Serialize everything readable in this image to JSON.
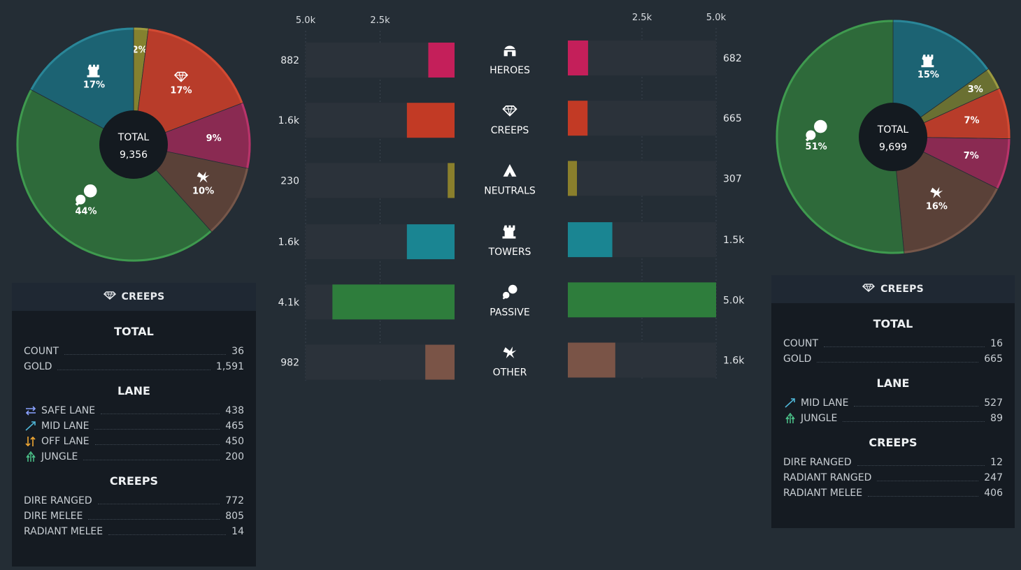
{
  "chart_data": [
    {
      "type": "pie",
      "total_label": "TOTAL",
      "total_value": "9,356",
      "slices": [
        {
          "name": "heroes",
          "label": "2%",
          "value": 2,
          "color": "#84812f",
          "icon": "none"
        },
        {
          "name": "creeps",
          "label": "17%",
          "value": 17,
          "color": "#b83c2a",
          "icon": "gem-icon"
        },
        {
          "name": "neutrals",
          "label": "9%",
          "value": 9,
          "color": "#8a2a52",
          "icon": "none"
        },
        {
          "name": "other",
          "label": "10%",
          "value": 10,
          "color": "#5a4138",
          "icon": "claw-icon"
        },
        {
          "name": "passive",
          "label": "44%",
          "value": 44,
          "color": "#2e6a3a",
          "icon": "passive-icon"
        },
        {
          "name": "towers",
          "label": "17%",
          "value": 17,
          "color": "#1c6373",
          "icon": "tower-icon"
        }
      ]
    },
    {
      "type": "bar",
      "orientation": "horizontal-mirrored",
      "axis_ticks_left": [
        "5.0k",
        "2.5k"
      ],
      "axis_ticks_right": [
        "2.5k",
        "5.0k"
      ],
      "xlim": [
        0,
        5000
      ],
      "categories": [
        "HEROES",
        "CREEPS",
        "NEUTRALS",
        "TOWERS",
        "PASSIVE",
        "OTHER"
      ],
      "icons": [
        "helmet-icon",
        "gem-icon",
        "neutrals-icon",
        "tower-icon",
        "passive-icon",
        "claw-icon"
      ],
      "colors": [
        "#c41f5a",
        "#c23a25",
        "#8a7f2c",
        "#1a8592",
        "#2e7d3c",
        "#7a5447"
      ],
      "series": [
        {
          "side": "left",
          "values": [
            882,
            1600,
            230,
            1600,
            4100,
            982
          ],
          "labels": [
            "882",
            "1.6k",
            "230",
            "1.6k",
            "4.1k",
            "982"
          ]
        },
        {
          "side": "right",
          "values": [
            682,
            665,
            307,
            1500,
            5000,
            1600
          ],
          "labels": [
            "682",
            "665",
            "307",
            "1.5k",
            "5.0k",
            "1.6k"
          ]
        }
      ]
    },
    {
      "type": "pie",
      "total_label": "TOTAL",
      "total_value": "9,699",
      "slices": [
        {
          "name": "towers",
          "label": "15%",
          "value": 15,
          "color": "#1c6373",
          "icon": "tower-icon"
        },
        {
          "name": "heroes",
          "label": "3%",
          "value": 3,
          "color": "#6a7032",
          "icon": "none"
        },
        {
          "name": "creeps",
          "label": "7%",
          "value": 7,
          "color": "#b83c2a",
          "icon": "none"
        },
        {
          "name": "neutrals",
          "label": "7%",
          "value": 7,
          "color": "#8a2a52",
          "icon": "none"
        },
        {
          "name": "other",
          "label": "16%",
          "value": 16,
          "color": "#5a4138",
          "icon": "claw-icon"
        },
        {
          "name": "passive",
          "label": "51%",
          "value": 51,
          "color": "#2e6a3a",
          "icon": "passive-icon"
        }
      ]
    }
  ],
  "left_panel": {
    "title": "CREEPS",
    "sections": [
      {
        "title": "TOTAL",
        "rows": [
          {
            "label": "COUNT",
            "value": "36",
            "icon": "none"
          },
          {
            "label": "GOLD",
            "value": "1,591",
            "icon": "none"
          }
        ]
      },
      {
        "title": "LANE",
        "rows": [
          {
            "label": "SAFE LANE",
            "value": "438",
            "icon": "safe-lane-icon"
          },
          {
            "label": "MID LANE",
            "value": "465",
            "icon": "mid-lane-icon"
          },
          {
            "label": "OFF LANE",
            "value": "450",
            "icon": "off-lane-icon"
          },
          {
            "label": "JUNGLE",
            "value": "200",
            "icon": "jungle-icon"
          }
        ]
      },
      {
        "title": "CREEPS",
        "rows": [
          {
            "label": "DIRE RANGED",
            "value": "772",
            "icon": "none"
          },
          {
            "label": "DIRE MELEE",
            "value": "805",
            "icon": "none"
          },
          {
            "label": "RADIANT MELEE",
            "value": "14",
            "icon": "none"
          }
        ]
      }
    ]
  },
  "right_panel": {
    "title": "CREEPS",
    "sections": [
      {
        "title": "TOTAL",
        "rows": [
          {
            "label": "COUNT",
            "value": "16",
            "icon": "none"
          },
          {
            "label": "GOLD",
            "value": "665",
            "icon": "none"
          }
        ]
      },
      {
        "title": "LANE",
        "rows": [
          {
            "label": "MID LANE",
            "value": "527",
            "icon": "mid-lane-icon"
          },
          {
            "label": "JUNGLE",
            "value": "89",
            "icon": "jungle-icon"
          }
        ]
      },
      {
        "title": "CREEPS",
        "rows": [
          {
            "label": "DIRE RANGED",
            "value": "12",
            "icon": "none"
          },
          {
            "label": "RADIANT RANGED",
            "value": "247",
            "icon": "none"
          },
          {
            "label": "RADIANT MELEE",
            "value": "406",
            "icon": "none"
          }
        ]
      }
    ]
  }
}
